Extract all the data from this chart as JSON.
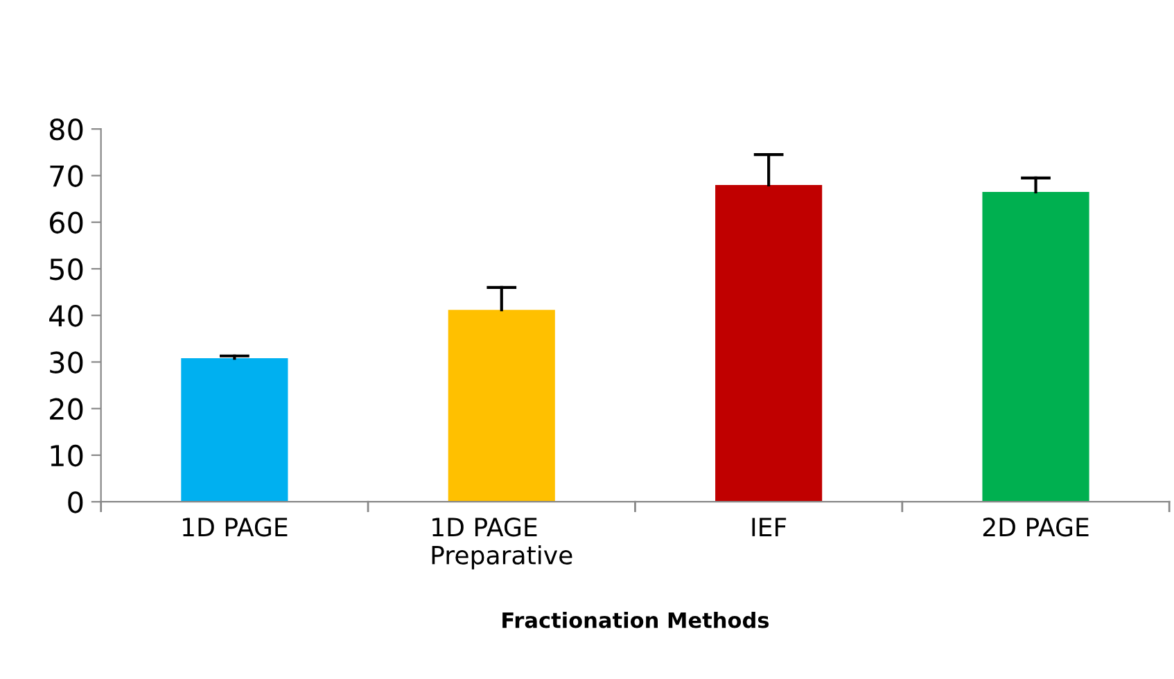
{
  "chart_data": {
    "type": "bar",
    "xlabel": "Fractionation Methods",
    "categories": [
      "1D PAGE",
      "1D PAGE\nPreparative",
      "IEF",
      "2D PAGE"
    ],
    "values": [
      30.8,
      41.2,
      68.0,
      66.5
    ],
    "colors": [
      "#00b0f0",
      "#ffc000",
      "#c00000",
      "#00b050"
    ],
    "errors": [
      [
        30.8,
        31.3
      ],
      [
        41.2,
        46.0
      ],
      [
        68.0,
        74.5
      ],
      [
        66.5,
        69.5
      ]
    ],
    "ylim": [
      0,
      80
    ],
    "yticks": [
      0,
      10,
      20,
      30,
      40,
      50,
      60,
      70,
      80
    ],
    "grid": false,
    "legend": false
  }
}
